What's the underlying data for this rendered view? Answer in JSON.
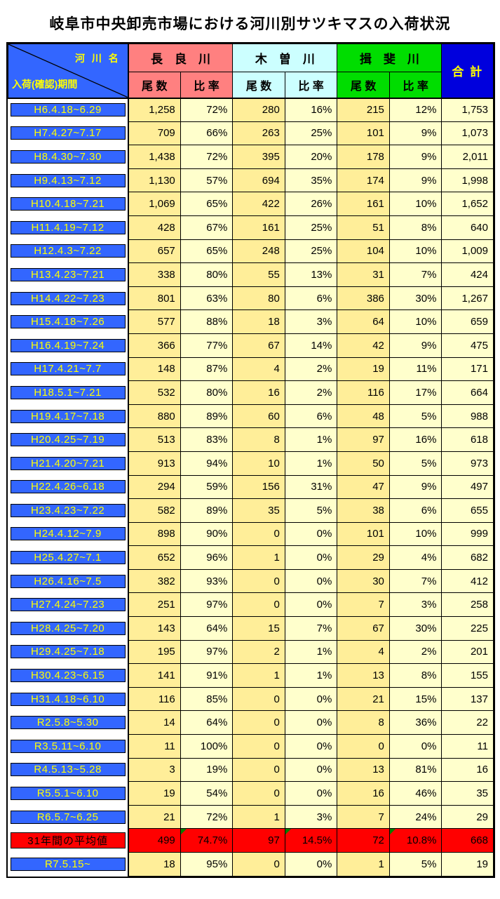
{
  "title": "岐阜市中央卸売市場における河川別サツキマスの入荷状況",
  "colors": {
    "label_blue": "#3366FF",
    "label_text": "#FFFF00",
    "total_blue": "#0000DD",
    "nagara": "#FF8080",
    "kiso": "#CCFFFF",
    "ibi": "#00DD00",
    "count_bg": "#FFEE99",
    "ratio_bg": "#FFFFCC",
    "avg_red": "#FF0000",
    "marker_green": "#008000"
  },
  "table": {
    "corner": {
      "top_right": "河 川 名",
      "bottom_left": "入荷(確認)期間"
    },
    "rivers": [
      {
        "name": "長　良　川"
      },
      {
        "name": "木　曽　川"
      },
      {
        "name": "揖　斐　川"
      }
    ],
    "sub_headers": {
      "count": "尾 数",
      "ratio": "比 率"
    },
    "total_header": "合 計"
  },
  "chart_data": {
    "type": "table",
    "title": "岐阜市中央卸売市場における河川別サツキマスの入荷状況",
    "columns": [
      "入荷(確認)期間",
      "長良川 尾数",
      "長良川 比率",
      "木曽川 尾数",
      "木曽川 比率",
      "揖斐川 尾数",
      "揖斐川 比率",
      "合計"
    ],
    "rows": [
      [
        "H6.4.18~6.29",
        "1,258",
        "72%",
        "280",
        "16%",
        "215",
        "12%",
        "1,753"
      ],
      [
        "H7.4.27~7.17",
        "709",
        "66%",
        "263",
        "25%",
        "101",
        "9%",
        "1,073"
      ],
      [
        "H8.4.30~7.30",
        "1,438",
        "72%",
        "395",
        "20%",
        "178",
        "9%",
        "2,011"
      ],
      [
        "H9.4.13~7.12",
        "1,130",
        "57%",
        "694",
        "35%",
        "174",
        "9%",
        "1,998"
      ],
      [
        "H10.4.18~7.21",
        "1,069",
        "65%",
        "422",
        "26%",
        "161",
        "10%",
        "1,652"
      ],
      [
        "H11.4.19~7.12",
        "428",
        "67%",
        "161",
        "25%",
        "51",
        "8%",
        "640"
      ],
      [
        "H12.4.3~7.22",
        "657",
        "65%",
        "248",
        "25%",
        "104",
        "10%",
        "1,009"
      ],
      [
        "H13.4.23~7.21",
        "338",
        "80%",
        "55",
        "13%",
        "31",
        "7%",
        "424"
      ],
      [
        "H14.4.22~7.23",
        "801",
        "63%",
        "80",
        "6%",
        "386",
        "30%",
        "1,267"
      ],
      [
        "H15.4.18~7.26",
        "577",
        "88%",
        "18",
        "3%",
        "64",
        "10%",
        "659"
      ],
      [
        "H16.4.19~7.24",
        "366",
        "77%",
        "67",
        "14%",
        "42",
        "9%",
        "475"
      ],
      [
        "H17.4.21~7.7",
        "148",
        "87%",
        "4",
        "2%",
        "19",
        "11%",
        "171"
      ],
      [
        "H18.5.1~7.21",
        "532",
        "80%",
        "16",
        "2%",
        "116",
        "17%",
        "664"
      ],
      [
        "H19.4.17~7.18",
        "880",
        "89%",
        "60",
        "6%",
        "48",
        "5%",
        "988"
      ],
      [
        "H20.4.25~7.19",
        "513",
        "83%",
        "8",
        "1%",
        "97",
        "16%",
        "618"
      ],
      [
        "H21.4.20~7.21",
        "913",
        "94%",
        "10",
        "1%",
        "50",
        "5%",
        "973"
      ],
      [
        "H22.4.26~6.18",
        "294",
        "59%",
        "156",
        "31%",
        "47",
        "9%",
        "497"
      ],
      [
        "H23.4.23~7.22",
        "582",
        "89%",
        "35",
        "5%",
        "38",
        "6%",
        "655"
      ],
      [
        "H24.4.12~7.9",
        "898",
        "90%",
        "0",
        "0%",
        "101",
        "10%",
        "999"
      ],
      [
        "H25.4.27~7.1",
        "652",
        "96%",
        "1",
        "0%",
        "29",
        "4%",
        "682"
      ],
      [
        "H26.4.16~7.5",
        "382",
        "93%",
        "0",
        "0%",
        "30",
        "7%",
        "412"
      ],
      [
        "H27.4.24~7.23",
        "251",
        "97%",
        "0",
        "0%",
        "7",
        "3%",
        "258"
      ],
      [
        "H28.4.25~7.20",
        "143",
        "64%",
        "15",
        "7%",
        "67",
        "30%",
        "225"
      ],
      [
        "H29.4.25~7.18",
        "195",
        "97%",
        "2",
        "1%",
        "4",
        "2%",
        "201"
      ],
      [
        "H30.4.23~6.15",
        "141",
        "91%",
        "1",
        "1%",
        "13",
        "8%",
        "155"
      ],
      [
        "H31.4.18~6.10",
        "116",
        "85%",
        "0",
        "0%",
        "21",
        "15%",
        "137"
      ],
      [
        "R2.5.8~5.30",
        "14",
        "64%",
        "0",
        "0%",
        "8",
        "36%",
        "22"
      ],
      [
        "R3.5.11~6.10",
        "11",
        "100%",
        "0",
        "0%",
        "0",
        "0%",
        "11"
      ],
      [
        "R4.5.13~5.28",
        "3",
        "19%",
        "0",
        "0%",
        "13",
        "81%",
        "16"
      ],
      [
        "R5.5.1~6.10",
        "19",
        "54%",
        "0",
        "0%",
        "16",
        "46%",
        "35"
      ],
      [
        "R6.5.7~6.25",
        "21",
        "72%",
        "1",
        "3%",
        "7",
        "24%",
        "29"
      ],
      [
        "31年間の平均値",
        "499",
        "74.7%",
        "97",
        "14.5%",
        "72",
        "10.8%",
        "668"
      ],
      [
        "R7.5.15~",
        "18",
        "95%",
        "0",
        "0%",
        "1",
        "5%",
        "19"
      ]
    ],
    "average_row_index": 31,
    "marker_columns": [
      2,
      4,
      6
    ],
    "layout_hints": {
      "grid": "on",
      "header_rows": 2,
      "row_label_column": true
    }
  }
}
